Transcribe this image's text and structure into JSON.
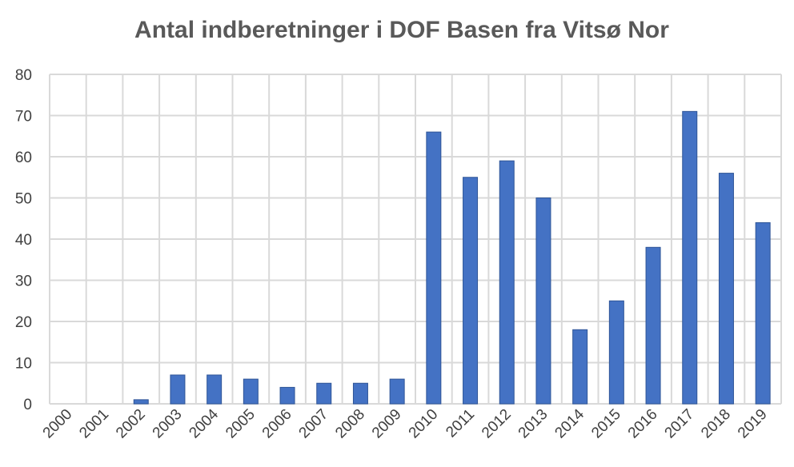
{
  "chart_data": {
    "type": "bar",
    "title": "Antal indberetninger i DOF Basen fra Vitsø Nor",
    "xlabel": "",
    "ylabel": "",
    "categories": [
      "2000",
      "2001",
      "2002",
      "2003",
      "2004",
      "2005",
      "2006",
      "2007",
      "2008",
      "2009",
      "2010",
      "2011",
      "2012",
      "2013",
      "2014",
      "2015",
      "2016",
      "2017",
      "2018",
      "2019"
    ],
    "values": [
      0,
      0,
      1,
      7,
      7,
      6,
      4,
      5,
      5,
      6,
      66,
      55,
      59,
      50,
      18,
      25,
      38,
      71,
      56,
      44
    ],
    "ylim": [
      0,
      80
    ],
    "yticks": [
      "0",
      "10",
      "20",
      "30",
      "40",
      "50",
      "60",
      "70",
      "80"
    ],
    "grid": "both",
    "legend": "none",
    "bar_color": "#4472c4"
  }
}
